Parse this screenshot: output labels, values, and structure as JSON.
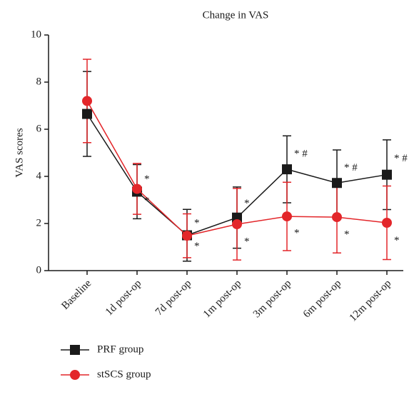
{
  "chart_data": {
    "type": "line",
    "title": "Change in VAS",
    "ylabel": "VAS scores",
    "categories": [
      "Baseline",
      "1d post-op",
      "7d post-op",
      "1m post-op",
      "3m post-op",
      "6m post-op",
      "12m post-op"
    ],
    "ylim": [
      0,
      10
    ],
    "yticks": [
      0,
      2,
      4,
      6,
      8,
      10
    ],
    "series": [
      {
        "name": "PRF group",
        "color": "#1a1a1a",
        "marker": "square",
        "values": [
          6.65,
          3.35,
          1.5,
          2.25,
          4.3,
          3.72,
          4.07
        ],
        "errors": [
          1.8,
          1.15,
          1.1,
          1.3,
          1.42,
          1.4,
          1.48
        ],
        "labels": [
          null,
          "*",
          "*",
          "*",
          "* #",
          "* #",
          "* #"
        ]
      },
      {
        "name": "stSCS group",
        "color": "#e3262a",
        "marker": "circle",
        "values": [
          7.2,
          3.47,
          1.48,
          1.97,
          2.3,
          2.27,
          2.03
        ],
        "errors": [
          1.77,
          1.08,
          0.93,
          1.52,
          1.45,
          1.52,
          1.56
        ],
        "labels": [
          null,
          "*",
          "*",
          "*",
          "*",
          "*",
          "*"
        ]
      }
    ],
    "legend": "bottom-left"
  }
}
